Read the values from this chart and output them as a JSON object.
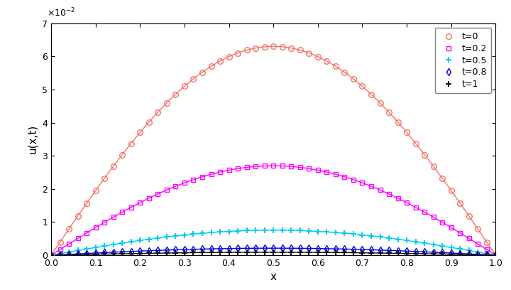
{
  "title": "",
  "xlabel": "x",
  "ylabel": "u(x,t)",
  "xlim": [
    0,
    1
  ],
  "ylim": [
    0,
    0.07
  ],
  "x_ticks": [
    0,
    0.1,
    0.2,
    0.3,
    0.4,
    0.5,
    0.6,
    0.7,
    0.8,
    0.9,
    1.0
  ],
  "y_ticks": [
    0,
    0.01,
    0.02,
    0.03,
    0.04,
    0.05,
    0.06,
    0.07
  ],
  "times": [
    0.0,
    0.2,
    0.5,
    0.8,
    1.0
  ],
  "colors": [
    "#F4736A",
    "#FF00FF",
    "#00CCEE",
    "#0000EE",
    "#111111"
  ],
  "markers": [
    "o",
    "s",
    "P",
    "d",
    "P"
  ],
  "marker_sizes": [
    5,
    5,
    5,
    5,
    5
  ],
  "markerfacecolor": [
    "none",
    "none",
    "cyan_fill",
    "none",
    "black_fill"
  ],
  "labels": [
    "t=0",
    "t=0.2",
    "t=0.5",
    "t=0.8",
    "t=1"
  ],
  "A": 0.063,
  "k": 4.24,
  "n_points": 51,
  "figsize": [
    7.2,
    4.08
  ],
  "dpi": 100
}
